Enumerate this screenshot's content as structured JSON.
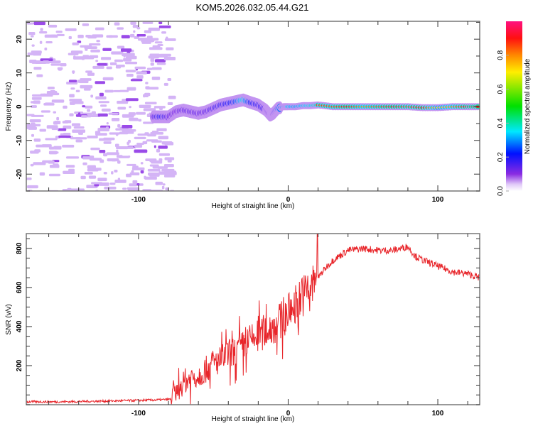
{
  "title": "KOM5.2026.032.05.44.G21",
  "chart_data": [
    {
      "type": "heatmap",
      "name": "spectrogram",
      "xlabel": "Height of straight line (km)",
      "ylabel": "Frequency (Hz)",
      "xlim": [
        -175,
        128
      ],
      "ylim": [
        -25,
        25.3
      ],
      "xticks": [
        -100,
        0,
        100
      ],
      "xtick_labels": [
        "-100",
        "0",
        "100"
      ],
      "yticks": [
        -20,
        -10,
        0,
        10,
        20
      ],
      "ytick_labels": [
        "-20",
        "-10",
        "0",
        "10",
        "20"
      ],
      "noise_region_km": [
        -175,
        -79
      ],
      "trace": {
        "description": "Doppler frequency trace of the meteor echo",
        "x": [
          -90,
          -85,
          -80,
          -75,
          -70,
          -65,
          -60,
          -55,
          -50,
          -45,
          -40,
          -35,
          -30,
          -25,
          -20,
          -15,
          -12,
          -10,
          -7,
          -3,
          0,
          5,
          10,
          15,
          20,
          30,
          40,
          50,
          60,
          70,
          80,
          90,
          100,
          110,
          120,
          128
        ],
        "freq": [
          -3,
          -3,
          -3,
          -1.5,
          -1,
          -1.5,
          -2,
          -1.5,
          -0.5,
          0.5,
          1,
          1.5,
          2,
          1.2,
          0.5,
          -1,
          -2.5,
          -2,
          -0.5,
          0,
          0,
          0,
          0.3,
          0.3,
          0.5,
          0,
          0,
          0,
          0,
          0,
          0,
          -0.3,
          -0.3,
          0,
          0,
          0
        ],
        "amplitude": [
          0.3,
          0.45,
          0.3,
          0.25,
          0.3,
          0.3,
          0.3,
          0.3,
          0.35,
          0.4,
          0.45,
          0.55,
          0.8,
          0.5,
          0.4,
          0.35,
          0.25,
          0.3,
          0.6,
          0.7,
          0.75,
          0.7,
          0.75,
          0.8,
          0.85,
          0.85,
          0.9,
          0.8,
          0.85,
          0.9,
          0.85,
          0.9,
          0.7,
          0.8,
          0.9,
          0.9
        ]
      },
      "colorbar": {
        "label": "Normalized spectral amplitude",
        "range": [
          0,
          1
        ],
        "ticks": [
          0.0,
          0.2,
          0.4,
          0.6,
          0.8
        ],
        "tick_labels": [
          "0.0",
          "0.2",
          "0.4",
          "0.6",
          "0.8"
        ]
      }
    },
    {
      "type": "line",
      "name": "snr",
      "xlabel": "Height of straight line (km)",
      "ylabel": "SNR (v/v)",
      "xlim": [
        -175,
        128
      ],
      "ylim": [
        0,
        876
      ],
      "xticks": [
        -100,
        0,
        100
      ],
      "xtick_labels": [
        "-100",
        "0",
        "100"
      ],
      "yticks": [
        200,
        400,
        600,
        800
      ],
      "ytick_labels": [
        "200",
        "400",
        "600",
        "800"
      ],
      "series": [
        {
          "name": "SNR",
          "color": "#e8252a",
          "x": [
            -175,
            -150,
            -125,
            -100,
            -85,
            -78,
            -75,
            -70,
            -65,
            -60,
            -55,
            -50,
            -45,
            -40,
            -35,
            -30,
            -25,
            -20,
            -15,
            -10,
            -5,
            0,
            5,
            10,
            15,
            20,
            25,
            30,
            40,
            50,
            60,
            70,
            80,
            85,
            90,
            100,
            110,
            120,
            128
          ],
          "y": [
            15,
            15,
            18,
            22,
            25,
            28,
            60,
            110,
            140,
            150,
            180,
            210,
            230,
            260,
            270,
            300,
            330,
            350,
            380,
            400,
            430,
            470,
            520,
            560,
            600,
            650,
            700,
            740,
            790,
            800,
            790,
            790,
            810,
            760,
            740,
            710,
            680,
            670,
            650
          ]
        }
      ]
    }
  ]
}
